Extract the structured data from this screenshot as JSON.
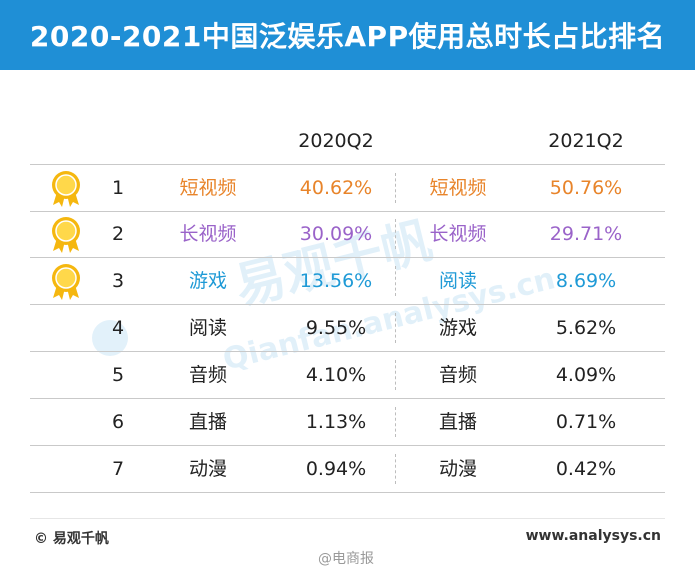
{
  "title": "2020-2021中国泛娱乐APP使用总时长占比排名",
  "colors": {
    "header_blue": "#1f8fd6",
    "rank1": "#e8842a",
    "rank2": "#9a63c9",
    "rank3": "#1f9ad6",
    "default": "#222222",
    "medal_gold": "#f5b70f"
  },
  "chart_data": {
    "type": "table",
    "columns": [
      "2020Q2",
      "2021Q2"
    ],
    "rows": [
      {
        "rank": "1",
        "app_2020": "短视频",
        "share_2020": "40.62%",
        "app_2021": "短视频",
        "share_2021": "50.76%"
      },
      {
        "rank": "2",
        "app_2020": "长视频",
        "share_2020": "30.09%",
        "app_2021": "长视频",
        "share_2021": "29.71%"
      },
      {
        "rank": "3",
        "app_2020": "游戏",
        "share_2020": "13.56%",
        "app_2021": "阅读",
        "share_2021": "8.69%"
      },
      {
        "rank": "4",
        "app_2020": "阅读",
        "share_2020": "9.55%",
        "app_2021": "游戏",
        "share_2021": "5.62%"
      },
      {
        "rank": "5",
        "app_2020": "音频",
        "share_2020": "4.10%",
        "app_2021": "音频",
        "share_2021": "4.09%"
      },
      {
        "rank": "6",
        "app_2020": "直播",
        "share_2020": "1.13%",
        "app_2021": "直播",
        "share_2021": "0.71%"
      },
      {
        "rank": "7",
        "app_2020": "动漫",
        "share_2020": "0.94%",
        "app_2021": "动漫",
        "share_2021": "0.42%"
      }
    ]
  },
  "watermark": {
    "cn": "易观千帆",
    "en": "Qianfan.analysys.cn"
  },
  "footer": {
    "source": "© 易观千帆",
    "site": "www.analysys.cn",
    "weibo": "@电商报"
  }
}
